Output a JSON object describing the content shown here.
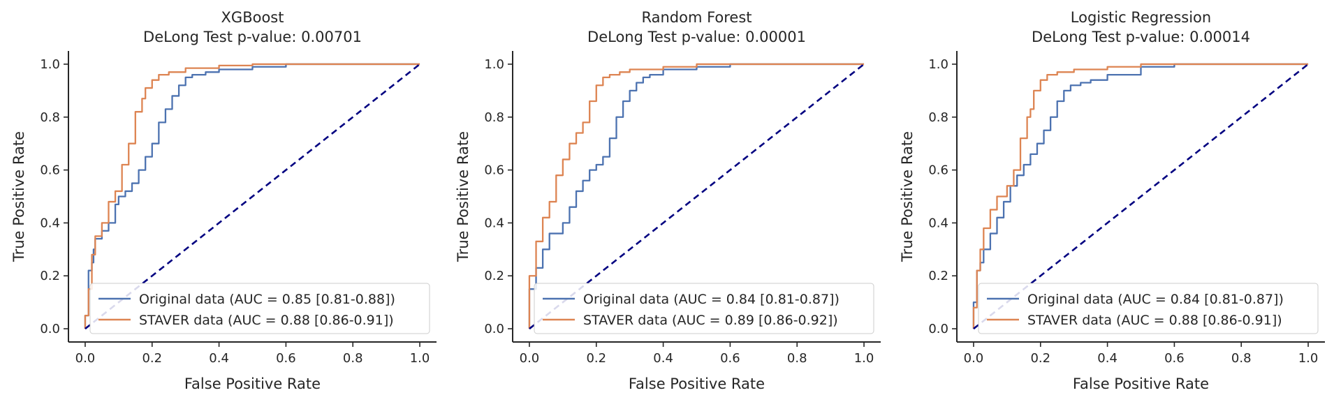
{
  "chart_data": [
    {
      "type": "line",
      "title": "XGBoost",
      "subtitle": "DeLong Test p-value: 0.00701",
      "xlabel": "False Positive Rate",
      "ylabel": "True Positive Rate",
      "xlim": [
        -0.05,
        1.05
      ],
      "ylim": [
        -0.05,
        1.05
      ],
      "xticks": [
        "0.0",
        "0.2",
        "0.4",
        "0.6",
        "0.8",
        "1.0"
      ],
      "yticks": [
        "0.0",
        "0.2",
        "0.4",
        "0.6",
        "0.8",
        "1.0"
      ],
      "legend_position": "lower-right",
      "series": [
        {
          "name": "Original data (AUC = 0.85 [0.81-0.88])",
          "color": "#4c72b0",
          "x": [
            0.0,
            0.01,
            0.02,
            0.025,
            0.03,
            0.05,
            0.07,
            0.09,
            0.1,
            0.12,
            0.14,
            0.16,
            0.18,
            0.2,
            0.22,
            0.24,
            0.26,
            0.28,
            0.3,
            0.32,
            0.36,
            0.4,
            0.5,
            0.6,
            0.7,
            0.8,
            1.0
          ],
          "y": [
            0.0,
            0.05,
            0.22,
            0.25,
            0.3,
            0.34,
            0.37,
            0.4,
            0.47,
            0.5,
            0.52,
            0.55,
            0.6,
            0.65,
            0.7,
            0.78,
            0.83,
            0.88,
            0.92,
            0.95,
            0.96,
            0.97,
            0.98,
            0.99,
            1.0,
            1.0,
            1.0
          ]
        },
        {
          "name": "STAVER data (AUC = 0.88 [0.86-0.91])",
          "color": "#dd8452",
          "x": [
            0.0,
            0.01,
            0.02,
            0.03,
            0.05,
            0.07,
            0.09,
            0.11,
            0.13,
            0.15,
            0.17,
            0.18,
            0.2,
            0.22,
            0.25,
            0.3,
            0.4,
            0.5,
            0.6,
            0.8,
            1.0
          ],
          "y": [
            0.0,
            0.05,
            0.15,
            0.28,
            0.35,
            0.4,
            0.48,
            0.52,
            0.62,
            0.7,
            0.82,
            0.87,
            0.91,
            0.94,
            0.96,
            0.97,
            0.985,
            0.995,
            1.0,
            1.0,
            1.0
          ]
        },
        {
          "name": "",
          "color": "#000080",
          "dashed": true,
          "x": [
            0.0,
            1.0
          ],
          "y": [
            0.0,
            1.0
          ]
        }
      ]
    },
    {
      "type": "line",
      "title": "Random Forest",
      "subtitle": "DeLong Test p-value: 0.00001",
      "xlabel": "False Positive Rate",
      "ylabel": "True Positive Rate",
      "xlim": [
        -0.05,
        1.05
      ],
      "ylim": [
        -0.05,
        1.05
      ],
      "xticks": [
        "0.0",
        "0.2",
        "0.4",
        "0.6",
        "0.8",
        "1.0"
      ],
      "yticks": [
        "0.0",
        "0.2",
        "0.4",
        "0.6",
        "0.8",
        "1.0"
      ],
      "legend_position": "lower-right",
      "series": [
        {
          "name": "Original data (AUC = 0.84 [0.81-0.87])",
          "color": "#4c72b0",
          "x": [
            0.0,
            0.02,
            0.04,
            0.06,
            0.1,
            0.12,
            0.14,
            0.16,
            0.18,
            0.2,
            0.22,
            0.24,
            0.26,
            0.28,
            0.3,
            0.32,
            0.34,
            0.36,
            0.4,
            0.5,
            0.6,
            0.7,
            0.8,
            1.0
          ],
          "y": [
            0.0,
            0.15,
            0.23,
            0.3,
            0.36,
            0.4,
            0.46,
            0.52,
            0.56,
            0.6,
            0.62,
            0.65,
            0.72,
            0.8,
            0.86,
            0.9,
            0.93,
            0.95,
            0.96,
            0.98,
            0.99,
            1.0,
            1.0,
            1.0
          ]
        },
        {
          "name": "STAVER data (AUC = 0.89 [0.86-0.92])",
          "color": "#dd8452",
          "x": [
            0.0,
            0.02,
            0.04,
            0.06,
            0.08,
            0.1,
            0.12,
            0.14,
            0.16,
            0.18,
            0.2,
            0.22,
            0.24,
            0.27,
            0.3,
            0.4,
            0.5,
            0.6,
            0.8,
            1.0
          ],
          "y": [
            0.0,
            0.2,
            0.33,
            0.42,
            0.48,
            0.58,
            0.64,
            0.7,
            0.74,
            0.78,
            0.86,
            0.92,
            0.95,
            0.96,
            0.97,
            0.98,
            0.99,
            1.0,
            1.0,
            1.0
          ]
        },
        {
          "name": "",
          "color": "#000080",
          "dashed": true,
          "x": [
            0.0,
            1.0
          ],
          "y": [
            0.0,
            1.0
          ]
        }
      ]
    },
    {
      "type": "line",
      "title": "Logistic Regression",
      "subtitle": "DeLong Test p-value: 0.00014",
      "xlabel": "False Positive Rate",
      "ylabel": "True Positive Rate",
      "xlim": [
        -0.05,
        1.05
      ],
      "ylim": [
        -0.05,
        1.05
      ],
      "xticks": [
        "0.0",
        "0.2",
        "0.4",
        "0.6",
        "0.8",
        "1.0"
      ],
      "yticks": [
        "0.0",
        "0.2",
        "0.4",
        "0.6",
        "0.8",
        "1.0"
      ],
      "legend_position": "lower-right",
      "series": [
        {
          "name": "Original data (AUC = 0.84 [0.81-0.87])",
          "color": "#4c72b0",
          "x": [
            0.0,
            0.01,
            0.02,
            0.03,
            0.05,
            0.07,
            0.09,
            0.11,
            0.13,
            0.15,
            0.17,
            0.19,
            0.21,
            0.23,
            0.25,
            0.27,
            0.29,
            0.32,
            0.35,
            0.4,
            0.5,
            0.6,
            0.7,
            0.8,
            1.0
          ],
          "y": [
            0.0,
            0.1,
            0.22,
            0.25,
            0.3,
            0.36,
            0.42,
            0.48,
            0.54,
            0.58,
            0.62,
            0.66,
            0.7,
            0.75,
            0.8,
            0.86,
            0.9,
            0.92,
            0.93,
            0.94,
            0.96,
            0.99,
            1.0,
            1.0,
            1.0
          ]
        },
        {
          "name": "STAVER data (AUC = 0.88 [0.86-0.91])",
          "color": "#dd8452",
          "x": [
            0.0,
            0.01,
            0.02,
            0.03,
            0.05,
            0.07,
            0.1,
            0.12,
            0.14,
            0.16,
            0.17,
            0.18,
            0.2,
            0.22,
            0.25,
            0.3,
            0.4,
            0.5,
            0.6,
            0.8,
            1.0
          ],
          "y": [
            0.0,
            0.08,
            0.22,
            0.3,
            0.38,
            0.45,
            0.5,
            0.54,
            0.6,
            0.72,
            0.8,
            0.83,
            0.9,
            0.94,
            0.96,
            0.97,
            0.98,
            0.99,
            1.0,
            1.0,
            1.0
          ]
        },
        {
          "name": "",
          "color": "#000080",
          "dashed": true,
          "x": [
            0.0,
            1.0
          ],
          "y": [
            0.0,
            1.0
          ]
        }
      ]
    }
  ]
}
